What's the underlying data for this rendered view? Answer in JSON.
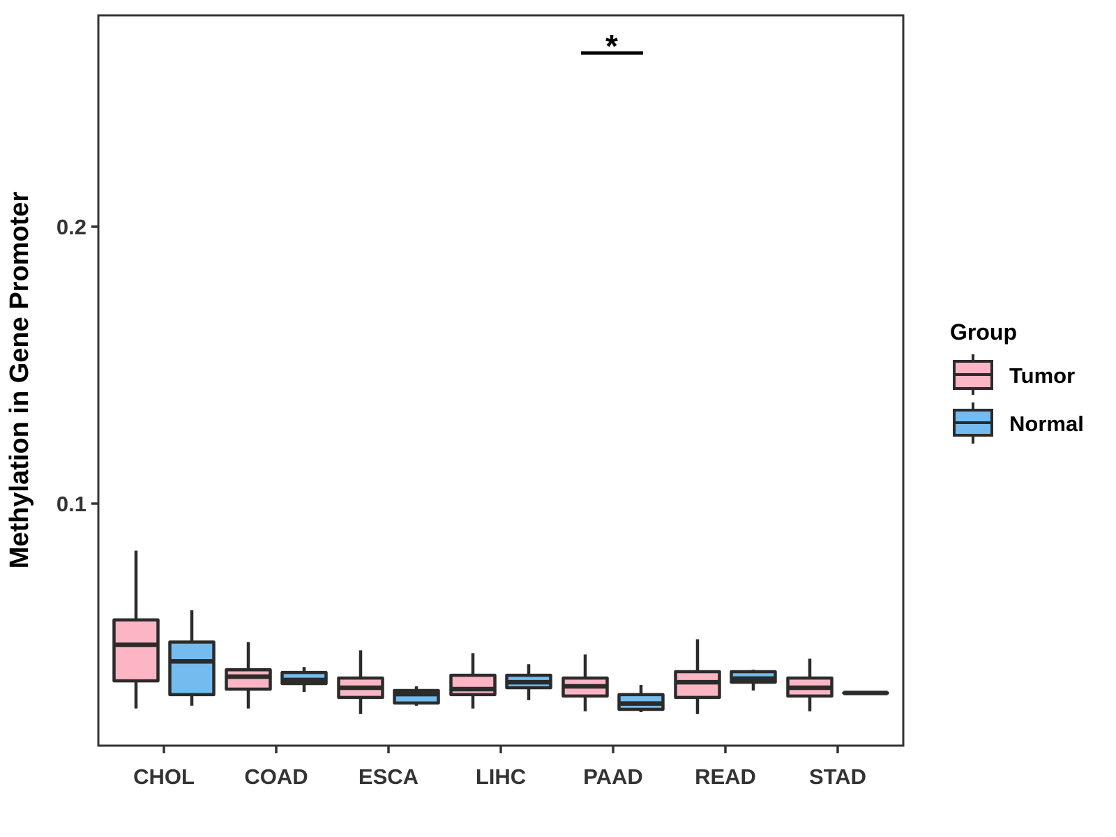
{
  "chart_data": {
    "type": "grouped_boxplot",
    "title": "",
    "xlabel": "",
    "ylabel": "Methylation in Gene Promoter",
    "y_ticks": [
      0.1,
      0.2
    ],
    "y_tick_labels": [
      "0.1",
      "0.2"
    ],
    "ylim": [
      0.013,
      0.276
    ],
    "grid": "off",
    "categories": [
      "CHOL",
      "COAD",
      "ESCA",
      "LIHC",
      "PAAD",
      "READ",
      "STAD"
    ],
    "legend": {
      "title": "Group",
      "position": "right",
      "entries": [
        {
          "label": "Tumor",
          "color": "#FBB5C4"
        },
        {
          "label": "Normal",
          "color": "#74BCF0"
        }
      ]
    },
    "colors": {
      "tumor_fill": "#FBB5C4",
      "normal_fill": "#74BCF0",
      "box_stroke": "#2B2B2B",
      "axis_line": "#333333",
      "axis_text": "#333333",
      "annotation": "#000000"
    },
    "series": [
      {
        "name": "Tumor",
        "color": "#FBB5C4",
        "boxes": [
          {
            "category": "CHOL",
            "low": 0.026,
            "q1": 0.036,
            "median": 0.049,
            "q3": 0.058,
            "high": 0.083
          },
          {
            "category": "COAD",
            "low": 0.026,
            "q1": 0.033,
            "median": 0.0375,
            "q3": 0.04,
            "high": 0.05
          },
          {
            "category": "ESCA",
            "low": 0.024,
            "q1": 0.03,
            "median": 0.0335,
            "q3": 0.037,
            "high": 0.047
          },
          {
            "category": "LIHC",
            "low": 0.026,
            "q1": 0.031,
            "median": 0.033,
            "q3": 0.038,
            "high": 0.046
          },
          {
            "category": "PAAD",
            "low": 0.025,
            "q1": 0.0305,
            "median": 0.034,
            "q3": 0.037,
            "high": 0.0455
          },
          {
            "category": "READ",
            "low": 0.024,
            "q1": 0.03,
            "median": 0.0355,
            "q3": 0.0393,
            "high": 0.051
          },
          {
            "category": "STAD",
            "low": 0.025,
            "q1": 0.0305,
            "median": 0.0335,
            "q3": 0.037,
            "high": 0.044
          }
        ]
      },
      {
        "name": "Normal",
        "color": "#74BCF0",
        "boxes": [
          {
            "category": "CHOL",
            "low": 0.027,
            "q1": 0.031,
            "median": 0.043,
            "q3": 0.05,
            "high": 0.0615
          },
          {
            "category": "COAD",
            "low": 0.032,
            "q1": 0.035,
            "median": 0.0363,
            "q3": 0.039,
            "high": 0.041
          },
          {
            "category": "ESCA",
            "low": 0.027,
            "q1": 0.028,
            "median": 0.0312,
            "q3": 0.0325,
            "high": 0.034
          },
          {
            "category": "LIHC",
            "low": 0.029,
            "q1": 0.0335,
            "median": 0.0355,
            "q3": 0.038,
            "high": 0.042
          },
          {
            "category": "PAAD",
            "low": 0.0247,
            "q1": 0.0257,
            "median": 0.0278,
            "q3": 0.031,
            "high": 0.0345
          },
          {
            "category": "READ",
            "low": 0.0325,
            "q1": 0.0355,
            "median": 0.0368,
            "q3": 0.0393,
            "high": 0.04
          },
          {
            "category": "STAD",
            "low": 0.0316,
            "q1": 0.0316,
            "median": 0.0316,
            "q3": 0.0316,
            "high": 0.0316
          }
        ]
      }
    ],
    "annotations": [
      {
        "type": "significance",
        "category": "PAAD",
        "between": [
          "Tumor",
          "Normal"
        ],
        "label": "*"
      }
    ]
  }
}
